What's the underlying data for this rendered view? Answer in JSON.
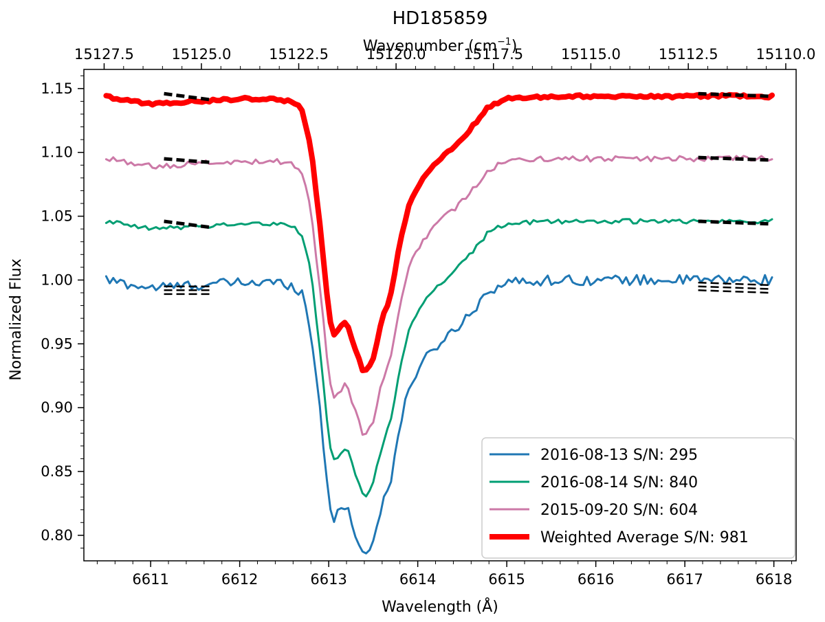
{
  "chart_data": {
    "type": "line",
    "title": "HD185859",
    "xlabel": "Wavelength (Å)",
    "ylabel": "Normalized Flux",
    "x2label_main": "Wavenumber (cm",
    "x2label_sup": "−1",
    "x2label_end": ")",
    "xlim": [
      6610.25,
      6618.25
    ],
    "ylim": [
      0.78,
      1.165
    ],
    "xticks": [
      "6611",
      "6612",
      "6613",
      "6614",
      "6615",
      "6616",
      "6617",
      "6618"
    ],
    "yticks": [
      "0.80",
      "0.85",
      "0.90",
      "0.95",
      "1.00",
      "1.05",
      "1.10",
      "1.15"
    ],
    "x2ticks": [
      "15127.5",
      "15125.0",
      "15122.5",
      "15120.0",
      "15117.5",
      "15115.0",
      "15112.5",
      "15110.0"
    ],
    "grid": false,
    "legend_position": "bottom-right",
    "profile": {
      "x": [
        6610.5,
        6610.8,
        6611.0,
        6611.5,
        6612.0,
        6612.4,
        6612.6,
        6612.7,
        6612.8,
        6612.9,
        6613.0,
        6613.05,
        6613.1,
        6613.2,
        6613.3,
        6613.4,
        6613.5,
        6613.6,
        6613.7,
        6613.8,
        6613.9,
        6614.0,
        6614.2,
        6614.4,
        6614.6,
        6614.8,
        6615.0,
        6615.5,
        6616.0,
        6616.5,
        6617.0,
        6617.5,
        6618.0
      ],
      "y": [
        0.0,
        -0.004,
        -0.006,
        -0.004,
        -0.002,
        -0.002,
        -0.004,
        -0.01,
        -0.04,
        -0.1,
        -0.17,
        -0.188,
        -0.184,
        -0.176,
        -0.198,
        -0.218,
        -0.205,
        -0.175,
        -0.155,
        -0.115,
        -0.085,
        -0.07,
        -0.052,
        -0.04,
        -0.025,
        -0.008,
        -0.002,
        0.0,
        0.0,
        0.0,
        0.0,
        0.0,
        0.0
      ]
    },
    "series": [
      {
        "name": "2016-08-13 S/N: 295",
        "color": "#1f77b4",
        "offset": 1.0,
        "noise": 0.004,
        "width": 3,
        "fits": [
          {
            "x": [
              6611.15,
              6611.7
            ],
            "y": [
              0.992,
              0.992
            ],
            "n": 3,
            "spread": 0.003
          },
          {
            "x": [
              6617.15,
              6617.95
            ],
            "y": [
              0.995,
              0.993
            ],
            "n": 3,
            "spread": 0.003
          }
        ]
      },
      {
        "name": "2016-08-14 S/N: 840",
        "color": "#009e73",
        "offset": 1.046,
        "noise": 0.0018,
        "width": 3,
        "fits": [
          {
            "x": [
              6611.15,
              6611.7
            ],
            "y": [
              1.046,
              1.041
            ],
            "n": 1,
            "spread": 0
          },
          {
            "x": [
              6617.15,
              6617.95
            ],
            "y": [
              1.046,
              1.044
            ],
            "n": 1,
            "spread": 0
          }
        ]
      },
      {
        "name": "2015-09-20 S/N: 604",
        "color": "#cc79a7",
        "offset": 1.095,
        "noise": 0.0022,
        "width": 3,
        "fits": [
          {
            "x": [
              6611.15,
              6611.7
            ],
            "y": [
              1.095,
              1.092
            ],
            "n": 1,
            "spread": 0
          },
          {
            "x": [
              6617.15,
              6617.95
            ],
            "y": [
              1.096,
              1.094
            ],
            "n": 1,
            "spread": 0
          }
        ]
      },
      {
        "name": "Weighted Average S/N: 981",
        "color": "#ff0000",
        "offset": 1.144,
        "noise": 0.0012,
        "width": 8,
        "fits": [
          {
            "x": [
              6611.15,
              6611.7
            ],
            "y": [
              1.146,
              1.141
            ],
            "n": 1,
            "spread": 0
          },
          {
            "x": [
              6617.15,
              6617.95
            ],
            "y": [
              1.146,
              1.144
            ],
            "n": 1,
            "spread": 0
          }
        ]
      }
    ]
  }
}
